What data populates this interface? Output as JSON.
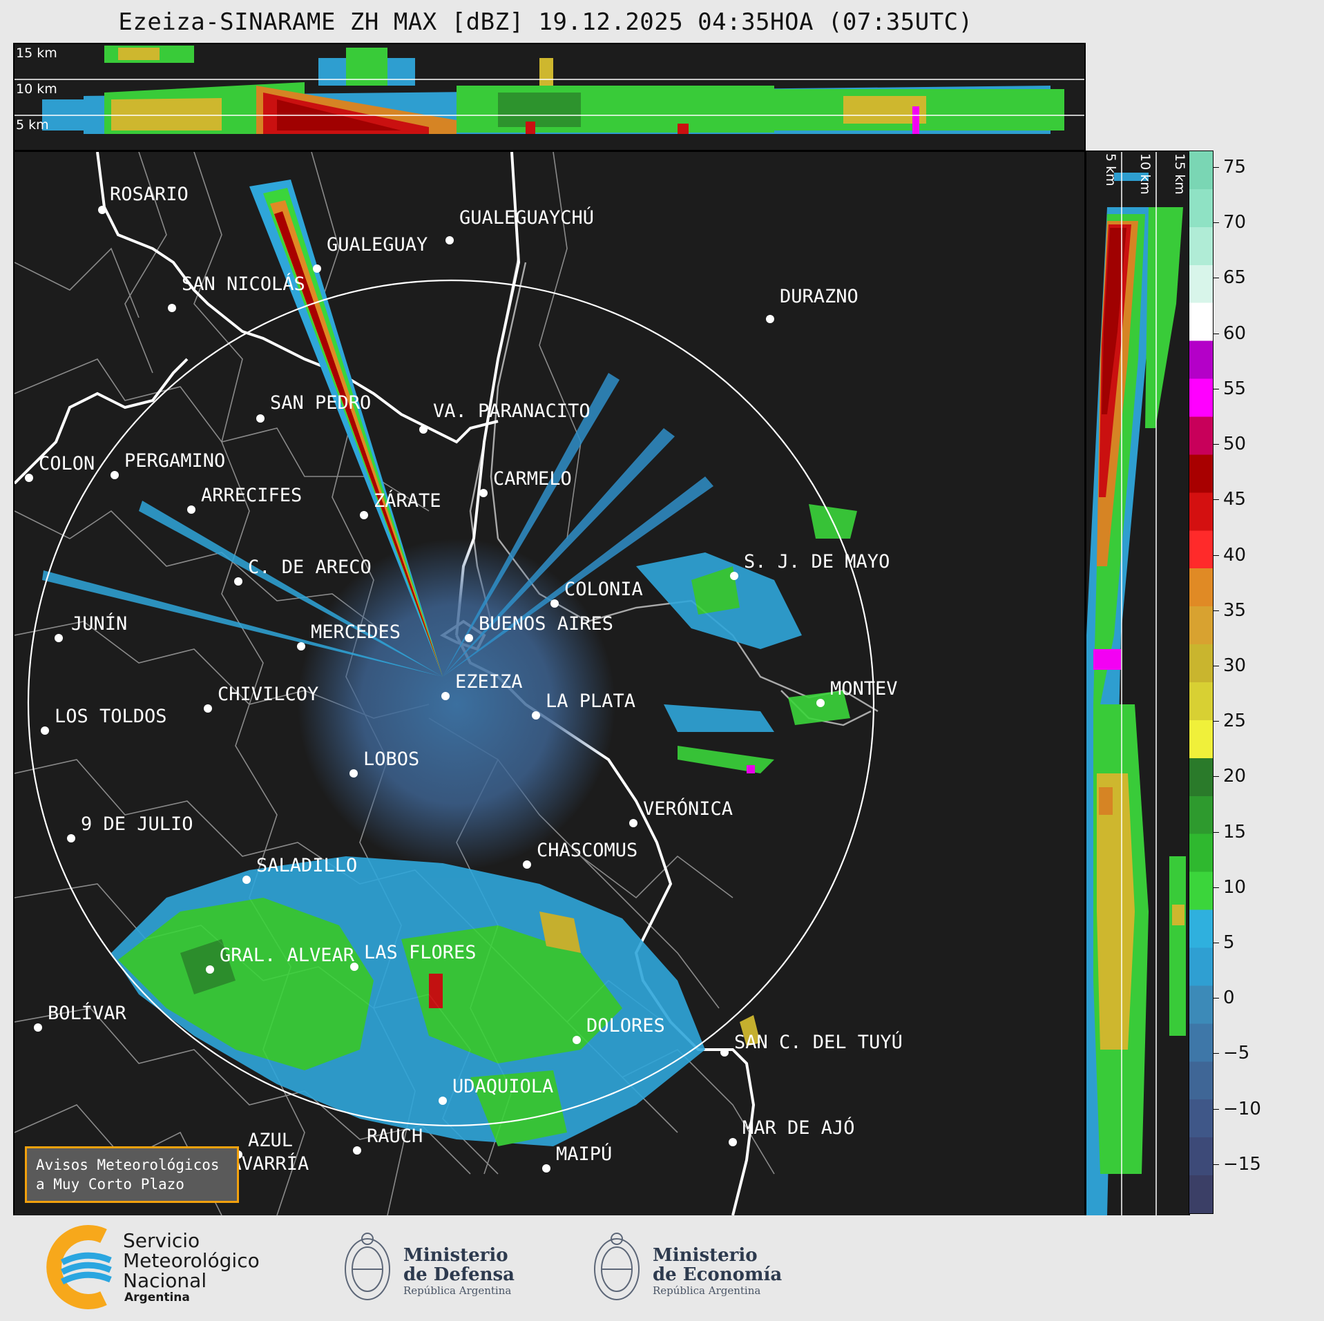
{
  "title": "Ezeiza-SINARAME ZH MAX [dBZ] 19.12.2025 04:35HOA (07:35UTC)",
  "top_panel": {
    "altitudes": [
      "15 km",
      "10 km",
      "5 km"
    ]
  },
  "right_panel": {
    "altitudes": [
      "5 km",
      "10 km",
      "15 km"
    ]
  },
  "colorbar": {
    "unit": "dBZ",
    "ticks": [
      "75",
      "70",
      "65",
      "60",
      "55",
      "50",
      "45",
      "40",
      "35",
      "30",
      "25",
      "20",
      "15",
      "10",
      "5",
      "0",
      "−5",
      "−10",
      "−15"
    ],
    "tick_values": [
      75,
      70,
      65,
      60,
      55,
      50,
      45,
      40,
      35,
      30,
      25,
      20,
      15,
      10,
      5,
      0,
      -5,
      -10,
      -15
    ],
    "range": [
      -19.5,
      76.5
    ],
    "palette": [
      "#3b3f66",
      "#3d4a78",
      "#3f5788",
      "#3f6696",
      "#3e77a8",
      "#3c8ab8",
      "#2f9fd2",
      "#2fb0de",
      "#3bd53b",
      "#2fb82f",
      "#2e9a2e",
      "#2a7a2a",
      "#f0f03a",
      "#d8d033",
      "#c9b52e",
      "#d8a230",
      "#e08a25",
      "#ff2a2a",
      "#d41010",
      "#a80000",
      "#c8005a",
      "#ff00ff",
      "#b400c8",
      "#ffffff",
      "#d8f5ea",
      "#b0ecd6",
      "#8fe2c4",
      "#7ad6b4"
    ]
  },
  "cities": [
    {
      "name": "ROSARIO",
      "dot": true
    },
    {
      "name": "GUALEGUAYCHÚ",
      "dot": true
    },
    {
      "name": "GUALEGUAY",
      "dot": true
    },
    {
      "name": "SAN NICOLÁS",
      "dot": true
    },
    {
      "name": "DURAZNO",
      "dot": true
    },
    {
      "name": "SAN PEDRO",
      "dot": true
    },
    {
      "name": "VA. PARANACITO",
      "dot": true
    },
    {
      "name": "COLON",
      "dot": true
    },
    {
      "name": "PERGAMINO",
      "dot": true
    },
    {
      "name": "CARMELO",
      "dot": true
    },
    {
      "name": "ARRECIFES",
      "dot": true
    },
    {
      "name": "ZÁRATE",
      "dot": true
    },
    {
      "name": "S. J. DE MAYO",
      "dot": true
    },
    {
      "name": "C. DE ARECO",
      "dot": true
    },
    {
      "name": "COLONIA",
      "dot": true
    },
    {
      "name": "JUNÍN",
      "dot": true
    },
    {
      "name": "MERCEDES",
      "dot": true
    },
    {
      "name": "BUENOS AIRES",
      "dot": true
    },
    {
      "name": "MONTEV",
      "dot": true
    },
    {
      "name": "EZEIZA",
      "dot": true
    },
    {
      "name": "CHIVILCOY",
      "dot": true
    },
    {
      "name": "LA PLATA",
      "dot": true
    },
    {
      "name": "LOS TOLDOS",
      "dot": true
    },
    {
      "name": "LOBOS",
      "dot": true
    },
    {
      "name": "VERÓNICA",
      "dot": true
    },
    {
      "name": "9 DE JULIO",
      "dot": true
    },
    {
      "name": "CHASCOMUS",
      "dot": true
    },
    {
      "name": "SALADILLO",
      "dot": true
    },
    {
      "name": "GRAL. ALVEAR",
      "dot": true
    },
    {
      "name": "LAS FLORES",
      "dot": true
    },
    {
      "name": "BOLÍVAR",
      "dot": true
    },
    {
      "name": "DOLORES",
      "dot": true
    },
    {
      "name": "SAN C. DEL TUYÚ",
      "dot": true
    },
    {
      "name": "UDAQUIOLA",
      "dot": true
    },
    {
      "name": "MAR DE AJÓ",
      "dot": true
    },
    {
      "name": "AZUL",
      "dot": true
    },
    {
      "name": "RAUCH",
      "dot": true
    },
    {
      "name": "MAIPÚ",
      "dot": true
    },
    {
      "name": "OLAVARRÍA",
      "dot": true
    }
  ],
  "warning_box": {
    "line1": "Avisos Meteorológicos",
    "line2": "a Muy Corto Plazo",
    "border_color": "#f2a10d"
  },
  "footer": {
    "smn": {
      "line1": "Servicio",
      "line2": "Meteorológico",
      "line3": "Nacional",
      "country": "Argentina"
    },
    "defensa": {
      "line1": "Ministerio",
      "line2": "de Defensa",
      "country": "República Argentina"
    },
    "economia": {
      "line1": "Ministerio",
      "line2": "de Economía",
      "country": "República Argentina"
    }
  },
  "colors": {
    "map_bg": "#1c1c1c",
    "page_bg": "#e8e8e8",
    "border_line": "#ffffff",
    "province_line": "#8a8a8a"
  }
}
